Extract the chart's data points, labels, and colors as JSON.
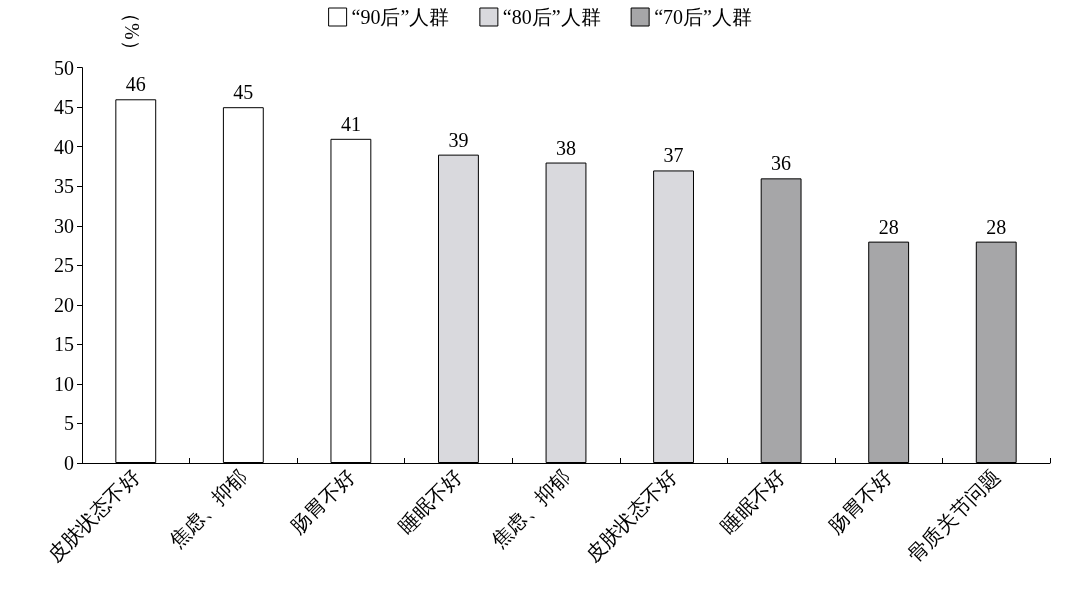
{
  "chart_data": {
    "type": "bar",
    "ylabel": "（%）",
    "categories": [
      "皮肤状态不好",
      "焦虑、抑郁",
      "肠胃不好",
      "睡眠不好",
      "焦虑、抑郁",
      "皮肤状态不好",
      "睡眠不好",
      "肠胃不好",
      "骨质关节问题"
    ],
    "series": [
      {
        "name": "“90后”人群",
        "color": "#ffffff",
        "values": [
          46,
          45,
          41,
          null,
          null,
          null,
          null,
          null,
          null
        ]
      },
      {
        "name": "“80后”人群",
        "color": "#d9d9dd",
        "values": [
          null,
          null,
          null,
          39,
          38,
          37,
          null,
          null,
          null
        ]
      },
      {
        "name": "“70后”人群",
        "color": "#a6a6a8",
        "values": [
          null,
          null,
          null,
          null,
          null,
          null,
          36,
          28,
          28
        ]
      }
    ],
    "ylim": [
      0,
      50
    ],
    "yticks": [
      0,
      5,
      10,
      15,
      20,
      25,
      30,
      35,
      40,
      45,
      50
    ],
    "grid": false,
    "legend": "top",
    "data_labels": true
  }
}
